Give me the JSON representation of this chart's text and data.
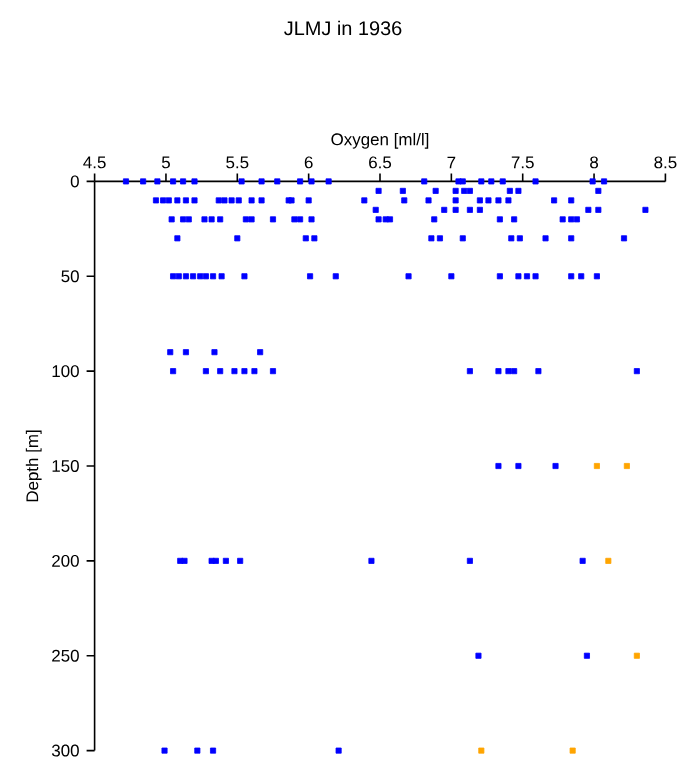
{
  "chart_data": {
    "type": "scatter",
    "title": "JLMJ in 1936",
    "xlabel": "Oxygen [ml/l]",
    "ylabel": "Depth [m]",
    "xlim": [
      4.5,
      8.5
    ],
    "xticks": [
      4.5,
      5,
      5.5,
      6,
      6.5,
      7,
      7.5,
      8,
      8.5
    ],
    "ylim": [
      300,
      0
    ],
    "yticks": [
      0,
      50,
      100,
      150,
      200,
      250,
      300
    ],
    "marker": "square",
    "series": [
      {
        "color": "#0000ff",
        "x": [
          4.72,
          4.84,
          4.94,
          5.05,
          5.12,
          5.2,
          5.53,
          5.67,
          5.78,
          5.94,
          6.02,
          6.14,
          6.81,
          7.05,
          7.08,
          7.21,
          7.28,
          7.36,
          7.59,
          7.99,
          8.07,
          6.49,
          6.66,
          6.89,
          7.03,
          7.09,
          7.13,
          7.41,
          7.47,
          8.03,
          4.93,
          4.98,
          5.02,
          5.08,
          5.14,
          5.2,
          5.37,
          5.41,
          5.46,
          5.51,
          5.6,
          5.67,
          5.86,
          5.88,
          6.0,
          6.39,
          6.67,
          6.84,
          7.03,
          7.2,
          7.26,
          7.33,
          7.4,
          7.72,
          7.84,
          6.47,
          6.95,
          7.03,
          7.13,
          7.2,
          7.96,
          8.03,
          8.36,
          5.04,
          5.12,
          5.16,
          5.27,
          5.32,
          5.38,
          5.56,
          5.6,
          5.75,
          5.9,
          5.94,
          6.02,
          6.49,
          6.54,
          6.57,
          6.88,
          7.34,
          7.44,
          7.78,
          7.84,
          7.88,
          5.08,
          5.5,
          5.98,
          6.04,
          6.86,
          6.92,
          7.08,
          7.42,
          7.48,
          7.66,
          7.84,
          8.21,
          5.05,
          5.09,
          5.14,
          5.19,
          5.24,
          5.28,
          5.33,
          5.39,
          5.55,
          6.01,
          6.19,
          6.7,
          7.0,
          7.34,
          7.47,
          7.53,
          7.59,
          7.84,
          7.91,
          8.02,
          5.03,
          5.14,
          5.34,
          5.66,
          5.05,
          5.28,
          5.38,
          5.48,
          5.55,
          5.62,
          5.75,
          7.13,
          7.33,
          7.4,
          7.44,
          7.61,
          8.3,
          7.33,
          7.47,
          7.73,
          5.1,
          5.13,
          5.32,
          5.35,
          5.42,
          5.52,
          6.44,
          7.13,
          7.92,
          7.19,
          7.95,
          4.99,
          5.22,
          5.33,
          6.21
        ],
        "values": [
          0,
          0,
          0,
          0,
          0,
          0,
          0,
          0,
          0,
          0,
          0,
          0,
          0,
          0,
          0,
          0,
          0,
          0,
          0,
          0,
          0,
          5,
          5,
          5,
          5,
          5,
          5,
          5,
          5,
          5,
          10,
          10,
          10,
          10,
          10,
          10,
          10,
          10,
          10,
          10,
          10,
          10,
          10,
          10,
          10,
          10,
          10,
          10,
          10,
          10,
          10,
          10,
          10,
          10,
          10,
          15,
          15,
          15,
          15,
          15,
          15,
          15,
          15,
          20,
          20,
          20,
          20,
          20,
          20,
          20,
          20,
          20,
          20,
          20,
          20,
          20,
          20,
          20,
          20,
          20,
          20,
          20,
          20,
          20,
          30,
          30,
          30,
          30,
          30,
          30,
          30,
          30,
          30,
          30,
          30,
          30,
          50,
          50,
          50,
          50,
          50,
          50,
          50,
          50,
          50,
          50,
          50,
          50,
          50,
          50,
          50,
          50,
          50,
          50,
          50,
          50,
          90,
          90,
          90,
          90,
          100,
          100,
          100,
          100,
          100,
          100,
          100,
          100,
          100,
          100,
          100,
          100,
          100,
          150,
          150,
          150,
          200,
          200,
          200,
          200,
          200,
          200,
          200,
          200,
          200,
          250,
          250,
          300,
          300,
          300,
          300
        ]
      },
      {
        "color": "#ffa500",
        "x": [
          8.02,
          8.23,
          8.1,
          8.3,
          7.21,
          7.85
        ],
        "values": [
          150,
          150,
          200,
          250,
          300,
          300
        ]
      }
    ]
  }
}
